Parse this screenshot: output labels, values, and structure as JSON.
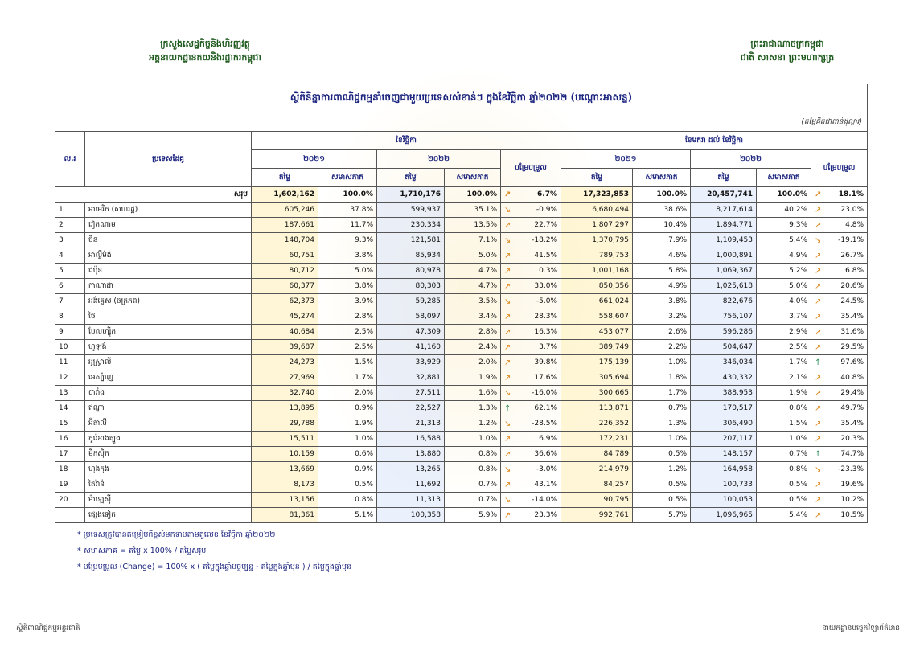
{
  "header": {
    "left": [
      "ក្រសួងសេដ្ឋកិច្ចនិងហិរញ្ញវត្ថុ",
      "អគ្គនាយកដ្ឋានគយនិងរដ្ឋាករកម្ពុជា"
    ],
    "right": [
      "ព្រះរាជាណាចក្រកម្ពុជា",
      "ជាតិ សាសនា ព្រះមហាក្សត្រ"
    ]
  },
  "table": {
    "title": "ស្ថិតិនិន្នាការពាណិជ្ជកម្មនាំចេញជាមួយប្រទេសសំខាន់ៗ ក្នុងខែវិច្ឆិកា ឆ្នាំ២០២២ (បណ្ដោះអាសន្ន)",
    "unit": "(តម្លៃគិតជាពាន់ដុល្លារ)",
    "headers": {
      "no": "ល.រ",
      "partner": "ប្រទេសដៃគូ",
      "month": "ខែវិច្ឆិកា",
      "ytd": "ខែមករា ដល់ ខែវិច្ឆិកា",
      "y2021": "២០២១",
      "y2022": "២០២២",
      "change": "បម្រែបម្រួល",
      "value": "តម្លៃ",
      "share": "សមាសភាគ"
    },
    "total": [
      "សរុប",
      "1,602,162",
      "100.0%",
      "1,710,176",
      "100.0%",
      "6.7%",
      "17,323,853",
      "100.0%",
      "20,457,741",
      "100.0%",
      "18.1%"
    ],
    "rows": [
      [
        "1",
        "អាមេរិក (សហរដ្ឋ)",
        "605,246",
        "37.8%",
        "599,937",
        "35.1%",
        "-0.9%",
        "6,680,494",
        "38.6%",
        "8,217,614",
        "40.2%",
        "23.0%"
      ],
      [
        "2",
        "វៀតណាម",
        "187,661",
        "11.7%",
        "230,334",
        "13.5%",
        "22.7%",
        "1,807,297",
        "10.4%",
        "1,894,771",
        "9.3%",
        "4.8%"
      ],
      [
        "3",
        "ចិន",
        "148,704",
        "9.3%",
        "121,581",
        "7.1%",
        "-18.2%",
        "1,370,795",
        "7.9%",
        "1,109,453",
        "5.4%",
        "-19.1%"
      ],
      [
        "4",
        "អាល្លឺម៉ង់",
        "60,751",
        "3.8%",
        "85,934",
        "5.0%",
        "41.5%",
        "789,753",
        "4.6%",
        "1,000,891",
        "4.9%",
        "26.7%"
      ],
      [
        "5",
        "ជប៉ុន",
        "80,712",
        "5.0%",
        "80,978",
        "4.7%",
        "0.3%",
        "1,001,168",
        "5.8%",
        "1,069,367",
        "5.2%",
        "6.8%"
      ],
      [
        "6",
        "កាណាដា",
        "60,377",
        "3.8%",
        "80,303",
        "4.7%",
        "33.0%",
        "850,356",
        "4.9%",
        "1,025,618",
        "5.0%",
        "20.6%"
      ],
      [
        "7",
        "អង់គ្លេស (ចក្រភព)",
        "62,373",
        "3.9%",
        "59,285",
        "3.5%",
        "-5.0%",
        "661,024",
        "3.8%",
        "822,676",
        "4.0%",
        "24.5%"
      ],
      [
        "8",
        "ថៃ",
        "45,274",
        "2.8%",
        "58,097",
        "3.4%",
        "28.3%",
        "558,607",
        "3.2%",
        "756,107",
        "3.7%",
        "35.4%"
      ],
      [
        "9",
        "បែលហ្ស៊ិក",
        "40,684",
        "2.5%",
        "47,309",
        "2.8%",
        "16.3%",
        "453,077",
        "2.6%",
        "596,286",
        "2.9%",
        "31.6%"
      ],
      [
        "10",
        "ហូឡង់",
        "39,687",
        "2.5%",
        "41,160",
        "2.4%",
        "3.7%",
        "389,749",
        "2.2%",
        "504,647",
        "2.5%",
        "29.5%"
      ],
      [
        "11",
        "អូស្ត្រាលី",
        "24,273",
        "1.5%",
        "33,929",
        "2.0%",
        "39.8%",
        "175,139",
        "1.0%",
        "346,034",
        "1.7%",
        "97.6%"
      ],
      [
        "12",
        "អេស្ប៉ាញ",
        "27,969",
        "1.7%",
        "32,881",
        "1.9%",
        "17.6%",
        "305,694",
        "1.8%",
        "430,332",
        "2.1%",
        "40.8%"
      ],
      [
        "13",
        "បារាំង",
        "32,740",
        "2.0%",
        "27,511",
        "1.6%",
        "-16.0%",
        "300,665",
        "1.7%",
        "388,953",
        "1.9%",
        "29.4%"
      ],
      [
        "14",
        "ឥណ្ឌា",
        "13,895",
        "0.9%",
        "22,527",
        "1.3%",
        "62.1%",
        "113,871",
        "0.7%",
        "170,517",
        "0.8%",
        "49.7%"
      ],
      [
        "15",
        "អ៊ីតាលី",
        "29,788",
        "1.9%",
        "21,313",
        "1.2%",
        "-28.5%",
        "226,352",
        "1.3%",
        "306,490",
        "1.5%",
        "35.4%"
      ],
      [
        "16",
        "កូរ៉េខាងត្បូង",
        "15,511",
        "1.0%",
        "16,588",
        "1.0%",
        "6.9%",
        "172,231",
        "1.0%",
        "207,117",
        "1.0%",
        "20.3%"
      ],
      [
        "17",
        "ម៉ិកស៊ិក",
        "10,159",
        "0.6%",
        "13,880",
        "0.8%",
        "36.6%",
        "84,789",
        "0.5%",
        "148,157",
        "0.7%",
        "74.7%"
      ],
      [
        "18",
        "ហុងកុង",
        "13,669",
        "0.9%",
        "13,265",
        "0.8%",
        "-3.0%",
        "214,979",
        "1.2%",
        "164,958",
        "0.8%",
        "-23.3%"
      ],
      [
        "19",
        "តៃវ៉ាន់",
        "8,173",
        "0.5%",
        "11,692",
        "0.7%",
        "43.1%",
        "84,257",
        "0.5%",
        "100,733",
        "0.5%",
        "19.6%"
      ],
      [
        "20",
        "ម៉ាឡេស៊ី",
        "13,156",
        "0.8%",
        "11,313",
        "0.7%",
        "-14.0%",
        "90,795",
        "0.5%",
        "100,053",
        "0.5%",
        "10.2%"
      ]
    ],
    "others": [
      "ផ្សេងទៀត",
      "81,361",
      "5.1%",
      "100,358",
      "5.9%",
      "23.3%",
      "992,761",
      "5.7%",
      "1,096,965",
      "5.4%",
      "10.5%"
    ]
  },
  "notes": [
    "* ប្រទេសត្រូវបានតម្រៀបពីខ្ពស់មកទាបតាមតួលេខ ខែវិច្ឆិកា ឆ្នាំ២០២២",
    "* សមាសភាគ = តម្លៃ x 100% / តម្លៃសរុប",
    "* បម្រែបម្រួល (Change) = 100% x ( តម្លៃក្នុងឆ្នាំបច្ចុប្បន្ន - តម្លៃក្នុងឆ្នាំមុន ) / តម្លៃក្នុងឆ្នាំមុន"
  ],
  "footer": {
    "left": "ស្ថិតិពាណិជ្ជកម្មអន្តរជាតិ",
    "right": "នាយកដ្ឋានបច្ចេកវិទ្យាព័ត៌មាន"
  }
}
